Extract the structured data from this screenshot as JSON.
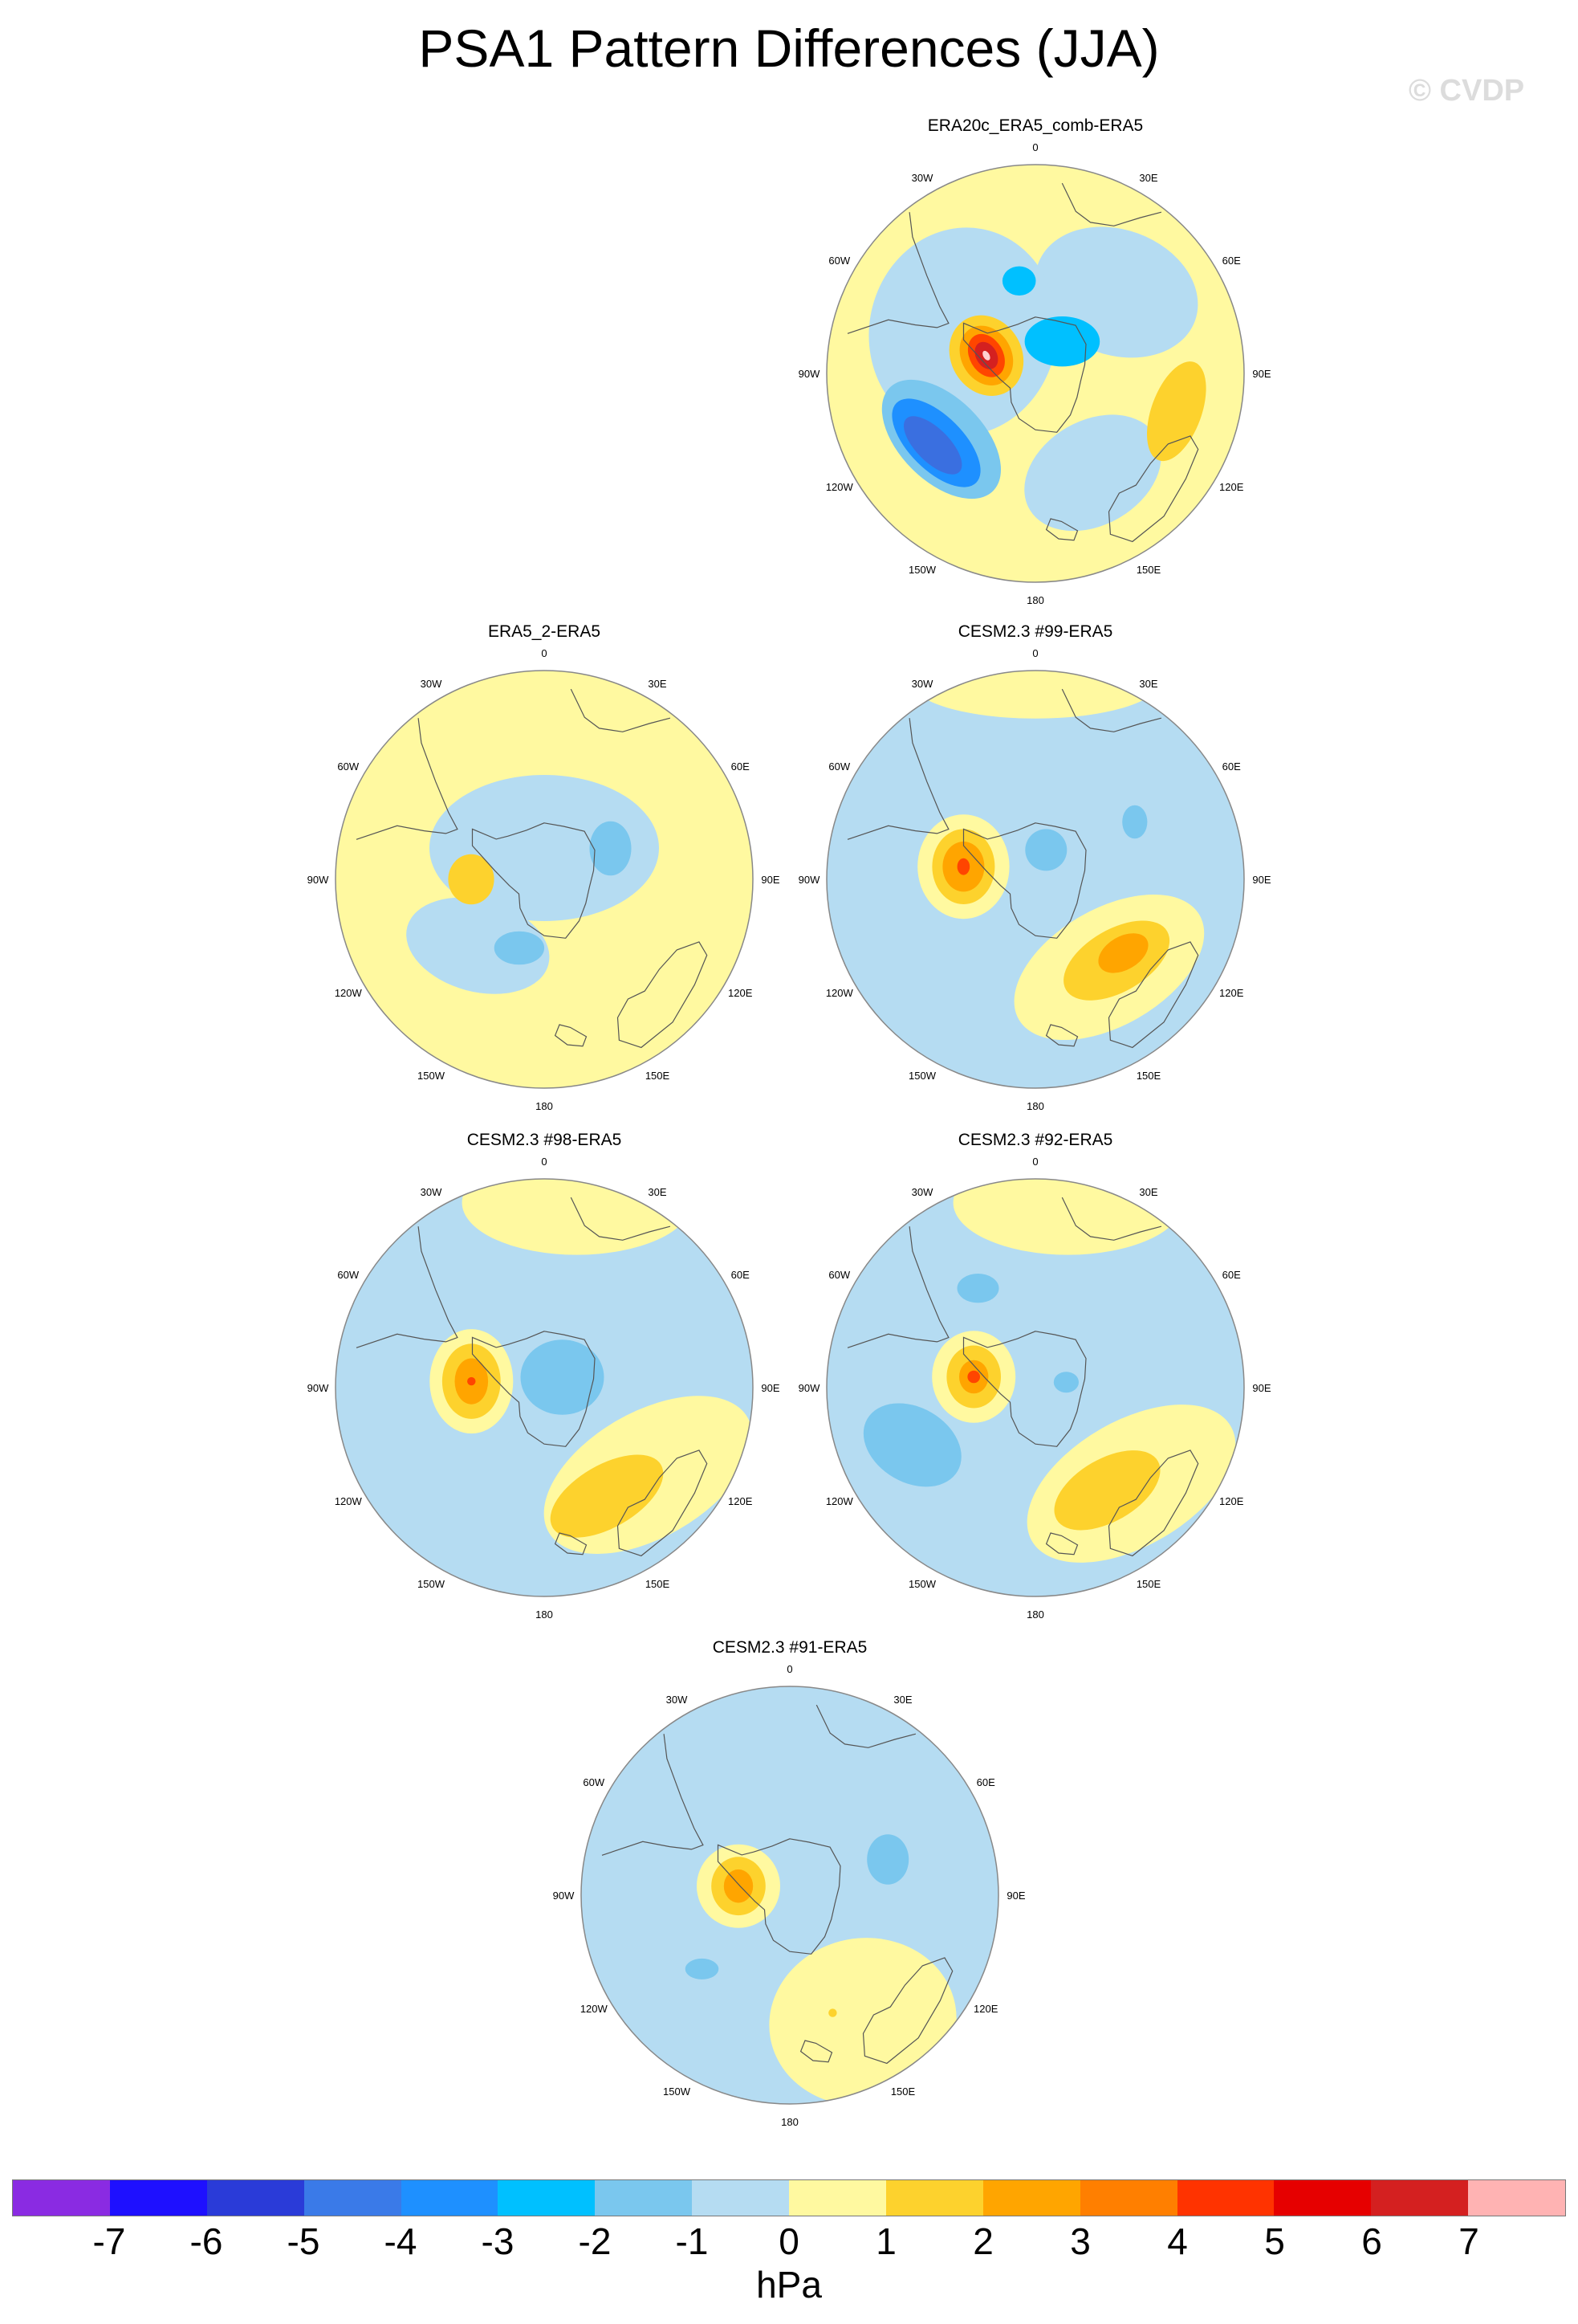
{
  "figure": {
    "title": "PSA1 Pattern Differences (JJA)",
    "watermark": "© CVDP"
  },
  "longitude_labels": [
    "0",
    "30E",
    "60E",
    "90E",
    "120E",
    "150E",
    "180",
    "150W",
    "120W",
    "90W",
    "60W",
    "30W"
  ],
  "palette": {
    "ocean_edge": "#888888",
    "coast": "#555555"
  },
  "panels": [
    {
      "id": "era20c",
      "title": "ERA20c_ERA5_comb-ERA5",
      "background": "#fff9a0",
      "blobs": [
        {
          "lon": 45,
          "r": 0.55,
          "rx": 0.4,
          "ry": 0.3,
          "rot": 20,
          "color": "#b5dcf2"
        },
        {
          "lon": 150,
          "r": 0.55,
          "rx": 0.35,
          "ry": 0.25,
          "rot": -30,
          "color": "#b5dcf2"
        },
        {
          "lon": 300,
          "r": 0.4,
          "rx": 0.45,
          "ry": 0.5,
          "rot": 10,
          "color": "#b5dcf2"
        },
        {
          "lon": 235,
          "r": 0.55,
          "rx": 0.35,
          "ry": 0.2,
          "rot": 45,
          "color": "#7ac7ee"
        },
        {
          "lon": 235,
          "r": 0.58,
          "rx": 0.27,
          "ry": 0.13,
          "rot": 45,
          "color": "#1e90ff"
        },
        {
          "lon": 235,
          "r": 0.6,
          "rx": 0.18,
          "ry": 0.08,
          "rot": 45,
          "color": "#3a6fe0"
        },
        {
          "lon": 40,
          "r": 0.2,
          "rx": 0.18,
          "ry": 0.12,
          "rot": 0,
          "color": "#00c0ff"
        },
        {
          "lon": 350,
          "r": 0.45,
          "rx": 0.08,
          "ry": 0.07,
          "rot": 0,
          "color": "#00c0ff"
        },
        {
          "lon": 105,
          "r": 0.7,
          "rx": 0.12,
          "ry": 0.25,
          "rot": 20,
          "color": "#fdd22d"
        },
        {
          "lon": 290,
          "r": 0.25,
          "rx": 0.17,
          "ry": 0.2,
          "rot": -30,
          "color": "#fdd22d"
        },
        {
          "lon": 290,
          "r": 0.25,
          "rx": 0.12,
          "ry": 0.15,
          "rot": -30,
          "color": "#ffa500"
        },
        {
          "lon": 290,
          "r": 0.25,
          "rx": 0.08,
          "ry": 0.11,
          "rot": -30,
          "color": "#ff4500"
        },
        {
          "lon": 290,
          "r": 0.25,
          "rx": 0.05,
          "ry": 0.07,
          "rot": -30,
          "color": "#d42020"
        },
        {
          "lon": 290,
          "r": 0.25,
          "rx": 0.015,
          "ry": 0.025,
          "rot": -30,
          "color": "#ffd0d0"
        }
      ]
    },
    {
      "id": "era5_2",
      "title": "ERA5_2-ERA5",
      "background": "#fff9a0",
      "blobs": [
        {
          "lon": 0,
          "r": 0.15,
          "rx": 0.55,
          "ry": 0.35,
          "rot": 0,
          "color": "#b5dcf2"
        },
        {
          "lon": 225,
          "r": 0.45,
          "rx": 0.35,
          "ry": 0.22,
          "rot": 15,
          "color": "#b5dcf2"
        },
        {
          "lon": 65,
          "r": 0.35,
          "rx": 0.1,
          "ry": 0.13,
          "rot": 0,
          "color": "#7ac7ee"
        },
        {
          "lon": 200,
          "r": 0.35,
          "rx": 0.12,
          "ry": 0.08,
          "rot": 0,
          "color": "#7ac7ee"
        },
        {
          "lon": 270,
          "r": 0.35,
          "rx": 0.11,
          "ry": 0.12,
          "rot": 0,
          "color": "#fdd22d"
        }
      ]
    },
    {
      "id": "cesm99",
      "title": "CESM2.3 #99-ERA5",
      "background": "#b5dcf2",
      "blobs": [
        {
          "lon": 0,
          "r": 0.95,
          "rx": 0.6,
          "ry": 0.18,
          "rot": 0,
          "color": "#fff9a0"
        },
        {
          "lon": 140,
          "r": 0.55,
          "rx": 0.5,
          "ry": 0.28,
          "rot": -30,
          "color": "#fff9a0"
        },
        {
          "lon": 280,
          "r": 0.35,
          "rx": 0.22,
          "ry": 0.25,
          "rot": 0,
          "color": "#fff9a0"
        },
        {
          "lon": 280,
          "r": 0.35,
          "rx": 0.15,
          "ry": 0.18,
          "rot": 0,
          "color": "#fdd22d"
        },
        {
          "lon": 280,
          "r": 0.35,
          "rx": 0.1,
          "ry": 0.12,
          "rot": 0,
          "color": "#ffa500"
        },
        {
          "lon": 280,
          "r": 0.35,
          "rx": 0.03,
          "ry": 0.04,
          "rot": 0,
          "color": "#ff4500"
        },
        {
          "lon": 135,
          "r": 0.55,
          "rx": 0.28,
          "ry": 0.15,
          "rot": -30,
          "color": "#fdd22d"
        },
        {
          "lon": 130,
          "r": 0.55,
          "rx": 0.13,
          "ry": 0.08,
          "rot": -30,
          "color": "#ffa500"
        },
        {
          "lon": 60,
          "r": 0.55,
          "rx": 0.06,
          "ry": 0.08,
          "rot": 0,
          "color": "#7ac7ee"
        },
        {
          "lon": 20,
          "r": 0.15,
          "rx": 0.1,
          "ry": 0.1,
          "rot": 0,
          "color": "#7ac7ee"
        }
      ]
    },
    {
      "id": "cesm98",
      "title": "CESM2.3 #98-ERA5",
      "background": "#b5dcf2",
      "blobs": [
        {
          "lon": 10,
          "r": 0.9,
          "rx": 0.55,
          "ry": 0.25,
          "rot": 0,
          "color": "#fff9a0"
        },
        {
          "lon": 130,
          "r": 0.65,
          "rx": 0.55,
          "ry": 0.3,
          "rot": -30,
          "color": "#fff9a0"
        },
        {
          "lon": 275,
          "r": 0.35,
          "rx": 0.2,
          "ry": 0.25,
          "rot": 0,
          "color": "#fff9a0"
        },
        {
          "lon": 275,
          "r": 0.35,
          "rx": 0.14,
          "ry": 0.18,
          "rot": 0,
          "color": "#fdd22d"
        },
        {
          "lon": 275,
          "r": 0.35,
          "rx": 0.08,
          "ry": 0.11,
          "rot": 0,
          "color": "#ffa500"
        },
        {
          "lon": 275,
          "r": 0.35,
          "rx": 0.02,
          "ry": 0.02,
          "rot": 0,
          "color": "#ff4500"
        },
        {
          "lon": 150,
          "r": 0.6,
          "rx": 0.3,
          "ry": 0.15,
          "rot": -30,
          "color": "#fdd22d"
        },
        {
          "lon": 60,
          "r": 0.1,
          "rx": 0.2,
          "ry": 0.18,
          "rot": 0,
          "color": "#7ac7ee"
        }
      ]
    },
    {
      "id": "cesm92",
      "title": "CESM2.3 #92-ERA5",
      "background": "#b5dcf2",
      "blobs": [
        {
          "lon": 10,
          "r": 0.9,
          "rx": 0.55,
          "ry": 0.25,
          "rot": 0,
          "color": "#fff9a0"
        },
        {
          "lon": 135,
          "r": 0.65,
          "rx": 0.55,
          "ry": 0.3,
          "rot": -30,
          "color": "#fff9a0"
        },
        {
          "lon": 280,
          "r": 0.3,
          "rx": 0.2,
          "ry": 0.22,
          "rot": 0,
          "color": "#fff9a0"
        },
        {
          "lon": 280,
          "r": 0.3,
          "rx": 0.13,
          "ry": 0.15,
          "rot": 0,
          "color": "#fdd22d"
        },
        {
          "lon": 280,
          "r": 0.3,
          "rx": 0.07,
          "ry": 0.08,
          "rot": 0,
          "color": "#ffa500"
        },
        {
          "lon": 280,
          "r": 0.3,
          "rx": 0.03,
          "ry": 0.03,
          "rot": 0,
          "color": "#ff4500"
        },
        {
          "lon": 145,
          "r": 0.6,
          "rx": 0.28,
          "ry": 0.15,
          "rot": -30,
          "color": "#fdd22d"
        },
        {
          "lon": 245,
          "r": 0.65,
          "rx": 0.25,
          "ry": 0.18,
          "rot": 30,
          "color": "#7ac7ee"
        },
        {
          "lon": 330,
          "r": 0.55,
          "rx": 0.1,
          "ry": 0.07,
          "rot": 0,
          "color": "#7ac7ee"
        },
        {
          "lon": 80,
          "r": 0.15,
          "rx": 0.06,
          "ry": 0.05,
          "rot": 0,
          "color": "#7ac7ee"
        }
      ]
    },
    {
      "id": "cesm91",
      "title": "CESM2.3 #91-ERA5",
      "background": "#b5dcf2",
      "blobs": [
        {
          "lon": 150,
          "r": 0.7,
          "rx": 0.45,
          "ry": 0.4,
          "rot": -10,
          "color": "#fff9a0"
        },
        {
          "lon": 280,
          "r": 0.25,
          "rx": 0.2,
          "ry": 0.2,
          "rot": 0,
          "color": "#fff9a0"
        },
        {
          "lon": 280,
          "r": 0.25,
          "rx": 0.13,
          "ry": 0.14,
          "rot": 0,
          "color": "#fdd22d"
        },
        {
          "lon": 280,
          "r": 0.25,
          "rx": 0.07,
          "ry": 0.08,
          "rot": 0,
          "color": "#ffa500"
        },
        {
          "lon": 70,
          "r": 0.5,
          "rx": 0.1,
          "ry": 0.12,
          "rot": 0,
          "color": "#7ac7ee"
        },
        {
          "lon": 230,
          "r": 0.55,
          "rx": 0.08,
          "ry": 0.05,
          "rot": 0,
          "color": "#7ac7ee"
        },
        {
          "lon": 160,
          "r": 0.6,
          "rx": 0.02,
          "ry": 0.02,
          "rot": 0,
          "color": "#fdd22d"
        }
      ]
    }
  ],
  "colorbar": {
    "units": "hPa",
    "colors": [
      "#8a2be2",
      "#1e10ff",
      "#2a3bd8",
      "#3a7ae8",
      "#1e90ff",
      "#00c0ff",
      "#7ac7ee",
      "#b5dcf2",
      "#fff9a0",
      "#fdd22d",
      "#ffa500",
      "#ff7f00",
      "#ff3300",
      "#e60000",
      "#d42020",
      "#ffb3b3"
    ],
    "tick_labels": [
      "-7",
      "-6",
      "-5",
      "-4",
      "-3",
      "-2",
      "-1",
      "0",
      "1",
      "2",
      "3",
      "4",
      "5",
      "6",
      "7"
    ]
  }
}
